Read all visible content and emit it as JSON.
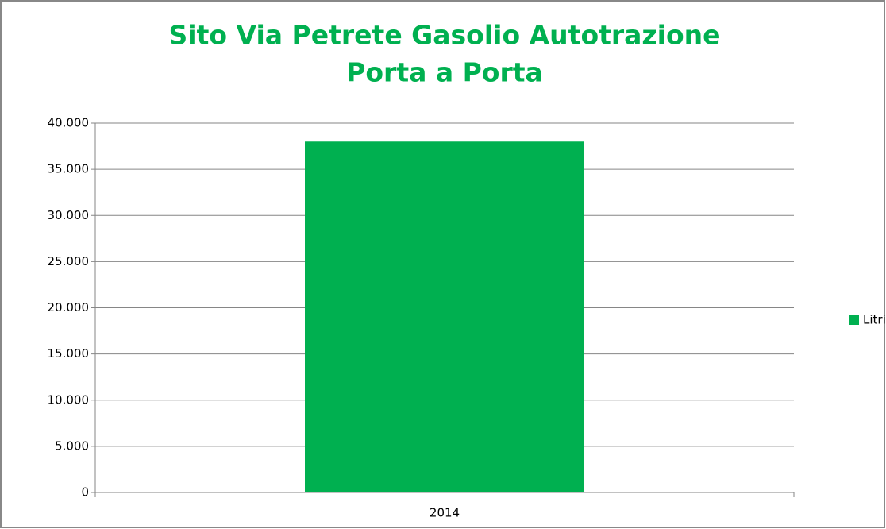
{
  "chart_data": {
    "type": "bar",
    "title": [
      "Sito Via Petrete Gasolio Autotrazione",
      "Porta a Porta"
    ],
    "categories": [
      "2014"
    ],
    "series": [
      {
        "name": "Litri",
        "color": "#00b050",
        "values": [
          38000
        ]
      }
    ],
    "ylim": [
      0,
      40000
    ],
    "yticks": [
      0,
      {
        "value": 5000,
        "label": "5.000"
      },
      {
        "value": 10000,
        "label": "10.000"
      },
      {
        "value": 15000,
        "label": "15.000"
      },
      {
        "value": 20000,
        "label": "20.000"
      },
      {
        "value": 25000,
        "label": "25.000"
      },
      {
        "value": 30000,
        "label": "30.000"
      },
      {
        "value": 35000,
        "label": "35.000"
      },
      {
        "value": 40000,
        "label": "40.000"
      }
    ],
    "grid": true,
    "legend": "right"
  }
}
